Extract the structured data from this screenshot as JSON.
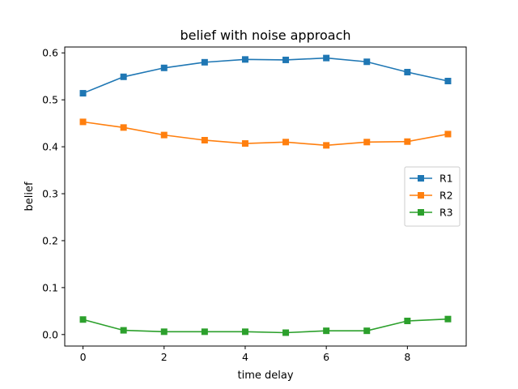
{
  "chart_data": {
    "type": "line",
    "title": "belief with noise approach",
    "xlabel": "time delay",
    "ylabel": "belief",
    "x": [
      0,
      1,
      2,
      3,
      4,
      5,
      6,
      7,
      8,
      9
    ],
    "xlim": [
      -0.45,
      9.45
    ],
    "ylim": [
      -0.0245,
      0.6125
    ],
    "xticks": [
      0,
      2,
      4,
      6,
      8
    ],
    "yticks": [
      0.0,
      0.1,
      0.2,
      0.3,
      0.4,
      0.5,
      0.6
    ],
    "ytick_labels": [
      "0.0",
      "0.1",
      "0.2",
      "0.3",
      "0.4",
      "0.5",
      "0.6"
    ],
    "grid": false,
    "legend_position": "center-right",
    "marker": "square",
    "series": [
      {
        "name": "R1",
        "color": "#1f77b4",
        "values": [
          0.514,
          0.549,
          0.568,
          0.58,
          0.586,
          0.585,
          0.589,
          0.581,
          0.559,
          0.54
        ]
      },
      {
        "name": "R2",
        "color": "#ff7f0e",
        "values": [
          0.453,
          0.441,
          0.425,
          0.414,
          0.407,
          0.41,
          0.403,
          0.41,
          0.411,
          0.427
        ]
      },
      {
        "name": "R3",
        "color": "#2ca02c",
        "values": [
          0.032,
          0.009,
          0.006,
          0.006,
          0.006,
          0.004,
          0.008,
          0.008,
          0.029,
          0.033
        ]
      }
    ]
  }
}
